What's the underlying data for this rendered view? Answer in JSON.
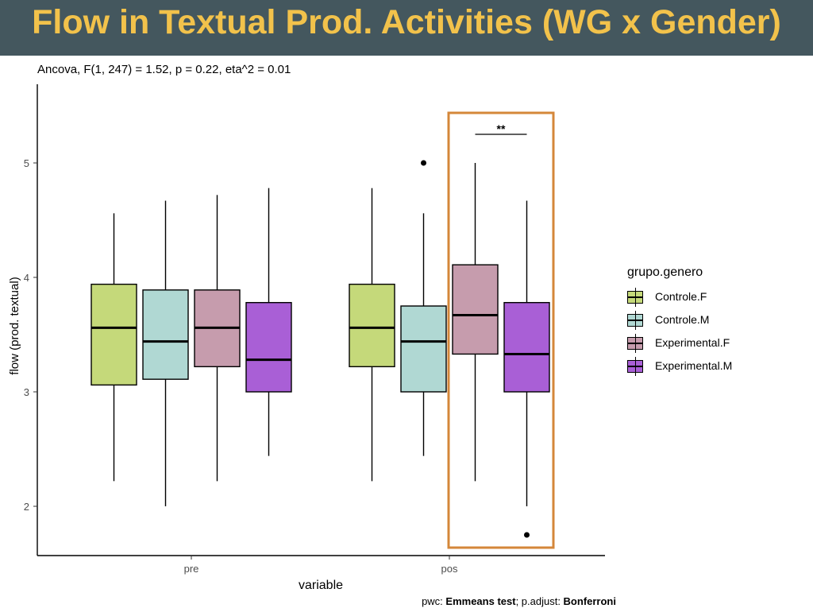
{
  "slide": {
    "title": "Flow in Textual Prod. Activities (WG x Gender)"
  },
  "chart_data": {
    "type": "box",
    "subtitle": "Ancova, F(1, 247) = 1.52, p = 0.22, eta^2 = 0.01",
    "xlabel": "variable",
    "ylabel": "flow (prod. textual)",
    "categories": [
      "pre",
      "pos"
    ],
    "ylim": [
      1.6,
      5.6
    ],
    "yticks": [
      2,
      3,
      4,
      5
    ],
    "grid": false,
    "legend": {
      "title": "grupo.genero",
      "position": "right"
    },
    "series": [
      {
        "name": "Controle.F",
        "color": "#c5d97a",
        "boxes": [
          {
            "category": "pre",
            "whisker_low": 2.22,
            "q1": 3.06,
            "median": 3.56,
            "q3": 3.94,
            "whisker_high": 4.56,
            "outliers": []
          },
          {
            "category": "pos",
            "whisker_low": 2.22,
            "q1": 3.22,
            "median": 3.56,
            "q3": 3.94,
            "whisker_high": 4.78,
            "outliers": []
          }
        ]
      },
      {
        "name": "Controle.M",
        "color": "#b0d8d3",
        "boxes": [
          {
            "category": "pre",
            "whisker_low": 2.0,
            "q1": 3.11,
            "median": 3.44,
            "q3": 3.89,
            "whisker_high": 4.67,
            "outliers": []
          },
          {
            "category": "pos",
            "whisker_low": 2.44,
            "q1": 3.0,
            "median": 3.44,
            "q3": 3.75,
            "whisker_high": 4.56,
            "outliers": [
              5.0
            ]
          }
        ]
      },
      {
        "name": "Experimental.F",
        "color": "#c69cad",
        "boxes": [
          {
            "category": "pre",
            "whisker_low": 2.22,
            "q1": 3.22,
            "median": 3.56,
            "q3": 3.89,
            "whisker_high": 4.72,
            "outliers": []
          },
          {
            "category": "pos",
            "whisker_low": 2.22,
            "q1": 3.33,
            "median": 3.67,
            "q3": 4.11,
            "whisker_high": 5.0,
            "outliers": []
          }
        ]
      },
      {
        "name": "Experimental.M",
        "color": "#a95fd6",
        "boxes": [
          {
            "category": "pre",
            "whisker_low": 2.44,
            "q1": 3.0,
            "median": 3.28,
            "q3": 3.78,
            "whisker_high": 4.78,
            "outliers": []
          },
          {
            "category": "pos",
            "whisker_low": 2.0,
            "q1": 3.0,
            "median": 3.33,
            "q3": 3.78,
            "whisker_high": 4.67,
            "outliers": [
              1.75
            ]
          }
        ]
      }
    ],
    "annotations": {
      "significance": {
        "label": "**",
        "category": "pos",
        "between": [
          "Experimental.F",
          "Experimental.M"
        ]
      },
      "highlight": {
        "category": "pos",
        "series": [
          "Experimental.F",
          "Experimental.M"
        ],
        "color": "#d4873a"
      }
    },
    "caption": {
      "pwc_prefix": "pwc: ",
      "pwc_value": "Emmeans test",
      "adjust_prefix": "; p.adjust: ",
      "adjust_value": "Bonferroni"
    }
  }
}
